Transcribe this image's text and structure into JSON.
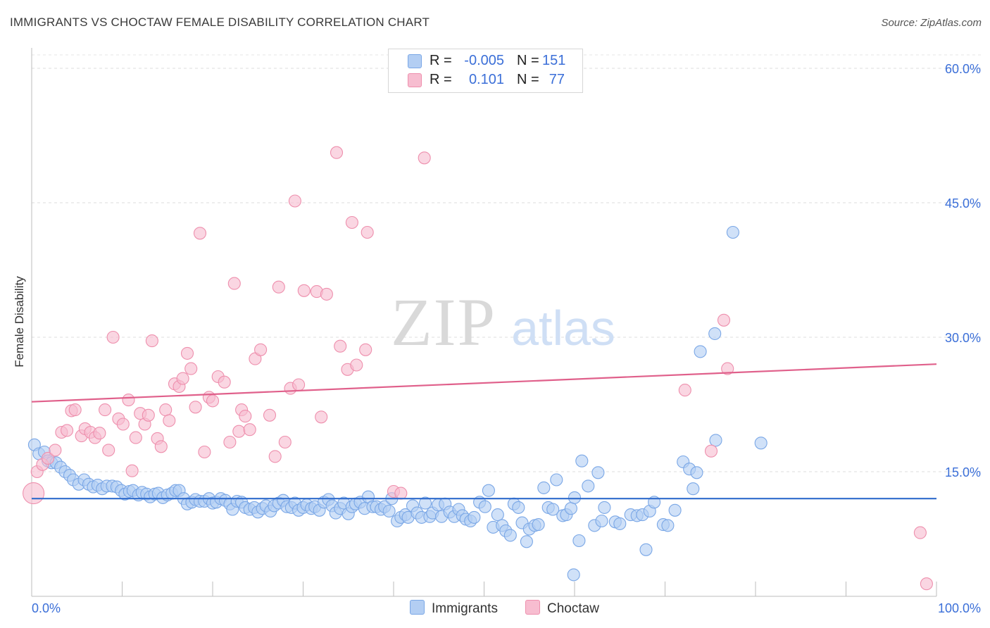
{
  "title": "IMMIGRANTS VS CHOCTAW FEMALE DISABILITY CORRELATION CHART",
  "source": "Source: ZipAtlas.com",
  "watermark": {
    "zip": "ZIP",
    "atlas": "atlas"
  },
  "legend": {
    "rows": [
      {
        "r_label": "R =",
        "r_value": "-0.005",
        "n_label": "N =",
        "n_value": "151",
        "color": "#a9c7f3"
      },
      {
        "r_label": "R =",
        "r_value": "0.101",
        "n_label": "N =",
        "n_value": "77",
        "color": "#f6b9cb"
      }
    ]
  },
  "chart_data": {
    "type": "scatter",
    "ylabel": "Female Disability",
    "xlabel": "",
    "xlim": [
      0,
      100
    ],
    "ylim": [
      0,
      60
    ],
    "x_tick_labels": [
      "0.0%",
      "100.0%"
    ],
    "y_tick_labels": [
      "15.0%",
      "30.0%",
      "45.0%",
      "60.0%"
    ],
    "y_ticks": [
      15,
      30,
      45,
      60
    ],
    "x_minor_ticks": [
      0,
      10,
      20,
      30,
      40,
      50,
      60,
      70,
      80,
      90,
      100
    ],
    "grid": true,
    "legend_position": "top-center",
    "series": [
      {
        "name": "Immigrants",
        "color": "#7aa7e6",
        "fill": "#b3cef3",
        "trend_color": "#2f6bcc",
        "trend": {
          "x": [
            0,
            100
          ],
          "y": [
            12.0,
            12.0
          ]
        },
        "points": [
          [
            0.3,
            18.0
          ],
          [
            0.8,
            17.0
          ],
          [
            1.4,
            17.2
          ],
          [
            1.8,
            16.2
          ],
          [
            2.2,
            16.0
          ],
          [
            2.7,
            16.0
          ],
          [
            3.2,
            15.5
          ],
          [
            3.7,
            15.0
          ],
          [
            4.2,
            14.6
          ],
          [
            4.6,
            14.1
          ],
          [
            5.2,
            13.6
          ],
          [
            5.8,
            14.1
          ],
          [
            6.3,
            13.6
          ],
          [
            6.8,
            13.3
          ],
          [
            7.3,
            13.5
          ],
          [
            7.8,
            13.1
          ],
          [
            8.3,
            13.4
          ],
          [
            8.9,
            13.4
          ],
          [
            9.4,
            13.3
          ],
          [
            9.9,
            12.9
          ],
          [
            10.3,
            12.5
          ],
          [
            10.8,
            12.8
          ],
          [
            11.2,
            12.9
          ],
          [
            11.8,
            12.4
          ],
          [
            12.2,
            12.7
          ],
          [
            12.7,
            12.5
          ],
          [
            13.1,
            12.2
          ],
          [
            13.6,
            12.5
          ],
          [
            14.0,
            12.6
          ],
          [
            14.5,
            12.1
          ],
          [
            15.0,
            12.4
          ],
          [
            15.5,
            12.6
          ],
          [
            15.9,
            12.9
          ],
          [
            16.3,
            12.9
          ],
          [
            16.8,
            12.0
          ],
          [
            17.2,
            11.4
          ],
          [
            17.7,
            11.6
          ],
          [
            18.1,
            11.9
          ],
          [
            18.6,
            11.7
          ],
          [
            19.1,
            11.7
          ],
          [
            19.6,
            12.0
          ],
          [
            20.0,
            11.5
          ],
          [
            20.4,
            11.6
          ],
          [
            20.9,
            12.0
          ],
          [
            21.4,
            11.8
          ],
          [
            21.9,
            11.4
          ],
          [
            22.2,
            10.8
          ],
          [
            22.7,
            11.7
          ],
          [
            23.2,
            11.6
          ],
          [
            23.6,
            11.0
          ],
          [
            24.1,
            10.8
          ],
          [
            24.6,
            11.0
          ],
          [
            25.0,
            10.5
          ],
          [
            25.5,
            10.9
          ],
          [
            25.9,
            11.2
          ],
          [
            26.4,
            10.6
          ],
          [
            26.8,
            11.2
          ],
          [
            27.3,
            11.5
          ],
          [
            27.8,
            11.8
          ],
          [
            28.2,
            11.1
          ],
          [
            28.7,
            11.0
          ],
          [
            29.1,
            11.5
          ],
          [
            29.5,
            10.7
          ],
          [
            30.0,
            11.0
          ],
          [
            30.4,
            11.3
          ],
          [
            30.9,
            10.9
          ],
          [
            31.3,
            11.1
          ],
          [
            31.8,
            10.7
          ],
          [
            32.3,
            11.6
          ],
          [
            32.8,
            11.9
          ],
          [
            33.2,
            11.2
          ],
          [
            33.6,
            10.4
          ],
          [
            34.1,
            10.9
          ],
          [
            34.5,
            11.5
          ],
          [
            35.0,
            10.3
          ],
          [
            35.4,
            11.1
          ],
          [
            35.8,
            11.4
          ],
          [
            36.3,
            11.6
          ],
          [
            36.8,
            10.9
          ],
          [
            37.2,
            12.2
          ],
          [
            37.7,
            11.1
          ],
          [
            38.1,
            11.1
          ],
          [
            38.6,
            10.8
          ],
          [
            39.0,
            11.1
          ],
          [
            39.5,
            10.6
          ],
          [
            39.8,
            12.0
          ],
          [
            40.4,
            9.5
          ],
          [
            40.8,
            9.9
          ],
          [
            41.3,
            10.2
          ],
          [
            41.6,
            9.9
          ],
          [
            42.1,
            11.2
          ],
          [
            42.6,
            10.4
          ],
          [
            43.1,
            9.9
          ],
          [
            43.5,
            11.5
          ],
          [
            44.0,
            10.0
          ],
          [
            44.3,
            10.4
          ],
          [
            44.9,
            11.3
          ],
          [
            45.3,
            10.0
          ],
          [
            45.7,
            11.4
          ],
          [
            46.2,
            10.5
          ],
          [
            46.7,
            10.0
          ],
          [
            47.2,
            10.8
          ],
          [
            47.6,
            10.1
          ],
          [
            48.0,
            9.7
          ],
          [
            48.5,
            9.5
          ],
          [
            48.9,
            9.9
          ],
          [
            49.5,
            11.6
          ],
          [
            50.1,
            11.1
          ],
          [
            50.5,
            12.9
          ],
          [
            51.0,
            8.8
          ],
          [
            51.5,
            10.2
          ],
          [
            52.0,
            9.0
          ],
          [
            52.4,
            8.4
          ],
          [
            52.9,
            7.9
          ],
          [
            53.3,
            11.4
          ],
          [
            53.8,
            11.0
          ],
          [
            54.2,
            9.3
          ],
          [
            54.7,
            7.2
          ],
          [
            55.0,
            8.6
          ],
          [
            55.6,
            9.0
          ],
          [
            56.0,
            9.1
          ],
          [
            56.6,
            13.2
          ],
          [
            57.1,
            11.0
          ],
          [
            57.6,
            10.8
          ],
          [
            58.0,
            14.1
          ],
          [
            58.7,
            10.1
          ],
          [
            59.1,
            10.2
          ],
          [
            59.6,
            10.9
          ],
          [
            60.0,
            12.1
          ],
          [
            60.5,
            7.3
          ],
          [
            60.8,
            16.2
          ],
          [
            61.5,
            13.4
          ],
          [
            62.2,
            9.0
          ],
          [
            62.6,
            14.9
          ],
          [
            63.0,
            9.5
          ],
          [
            63.3,
            11.0
          ],
          [
            64.5,
            9.4
          ],
          [
            65.0,
            9.2
          ],
          [
            66.2,
            10.2
          ],
          [
            66.9,
            10.1
          ],
          [
            67.5,
            10.2
          ],
          [
            67.9,
            6.3
          ],
          [
            68.3,
            10.6
          ],
          [
            68.8,
            11.6
          ],
          [
            69.8,
            9.1
          ],
          [
            70.3,
            9.0
          ],
          [
            71.1,
            10.7
          ],
          [
            72.0,
            16.1
          ],
          [
            72.7,
            15.3
          ],
          [
            73.1,
            13.1
          ],
          [
            73.5,
            14.9
          ],
          [
            73.9,
            28.4
          ],
          [
            75.5,
            30.4
          ],
          [
            75.6,
            18.5
          ],
          [
            77.5,
            41.7
          ],
          [
            80.6,
            18.2
          ],
          [
            59.9,
            3.5
          ]
        ]
      },
      {
        "name": "Choctaw",
        "color": "#ee8fad",
        "fill": "#f7bdd0",
        "trend_color": "#e0608b",
        "trend": {
          "x": [
            0,
            100
          ],
          "y": [
            22.8,
            27.0
          ]
        },
        "points": [
          [
            0.2,
            12.6
          ],
          [
            0.6,
            15.0
          ],
          [
            1.2,
            15.8
          ],
          [
            1.8,
            16.5
          ],
          [
            2.6,
            17.4
          ],
          [
            3.3,
            19.4
          ],
          [
            3.9,
            19.6
          ],
          [
            4.4,
            21.8
          ],
          [
            4.8,
            21.9
          ],
          [
            5.5,
            19.0
          ],
          [
            5.9,
            19.8
          ],
          [
            6.5,
            19.4
          ],
          [
            7.0,
            18.8
          ],
          [
            7.5,
            19.3
          ],
          [
            8.1,
            21.9
          ],
          [
            8.5,
            17.4
          ],
          [
            9.0,
            30.0
          ],
          [
            9.6,
            20.9
          ],
          [
            10.1,
            20.3
          ],
          [
            10.7,
            23.0
          ],
          [
            11.1,
            15.1
          ],
          [
            11.5,
            18.8
          ],
          [
            12.0,
            21.5
          ],
          [
            12.5,
            20.3
          ],
          [
            12.9,
            21.3
          ],
          [
            13.3,
            29.6
          ],
          [
            13.9,
            18.7
          ],
          [
            14.3,
            17.8
          ],
          [
            14.8,
            21.9
          ],
          [
            15.2,
            20.7
          ],
          [
            15.8,
            24.8
          ],
          [
            16.3,
            24.5
          ],
          [
            16.7,
            25.4
          ],
          [
            17.2,
            28.2
          ],
          [
            17.6,
            26.5
          ],
          [
            18.1,
            22.2
          ],
          [
            18.6,
            41.6
          ],
          [
            19.1,
            17.2
          ],
          [
            19.6,
            23.3
          ],
          [
            20.0,
            22.9
          ],
          [
            20.6,
            25.6
          ],
          [
            21.3,
            25.0
          ],
          [
            21.9,
            18.3
          ],
          [
            22.4,
            36.0
          ],
          [
            22.9,
            19.5
          ],
          [
            23.2,
            21.9
          ],
          [
            23.6,
            21.2
          ],
          [
            24.1,
            19.7
          ],
          [
            24.7,
            27.6
          ],
          [
            25.3,
            28.6
          ],
          [
            26.3,
            21.3
          ],
          [
            26.9,
            16.7
          ],
          [
            27.3,
            35.6
          ],
          [
            28.0,
            18.3
          ],
          [
            28.6,
            24.3
          ],
          [
            29.1,
            45.2
          ],
          [
            29.5,
            24.7
          ],
          [
            30.1,
            35.2
          ],
          [
            31.5,
            35.1
          ],
          [
            32.0,
            21.1
          ],
          [
            32.6,
            34.8
          ],
          [
            33.7,
            50.6
          ],
          [
            34.9,
            26.4
          ],
          [
            35.4,
            42.8
          ],
          [
            35.9,
            26.9
          ],
          [
            36.9,
            28.6
          ],
          [
            37.1,
            41.7
          ],
          [
            40.0,
            12.8
          ],
          [
            43.4,
            50.0
          ],
          [
            72.2,
            24.1
          ],
          [
            75.1,
            17.3
          ],
          [
            76.5,
            31.9
          ],
          [
            76.9,
            26.5
          ],
          [
            98.2,
            8.2
          ],
          [
            98.9,
            2.5
          ],
          [
            40.8,
            12.6
          ],
          [
            34.1,
            29.0
          ]
        ]
      }
    ]
  },
  "bottom_legend": [
    {
      "label": "Immigrants",
      "color": "#a9c7f3"
    },
    {
      "label": "Choctaw",
      "color": "#f6b9cb"
    }
  ]
}
